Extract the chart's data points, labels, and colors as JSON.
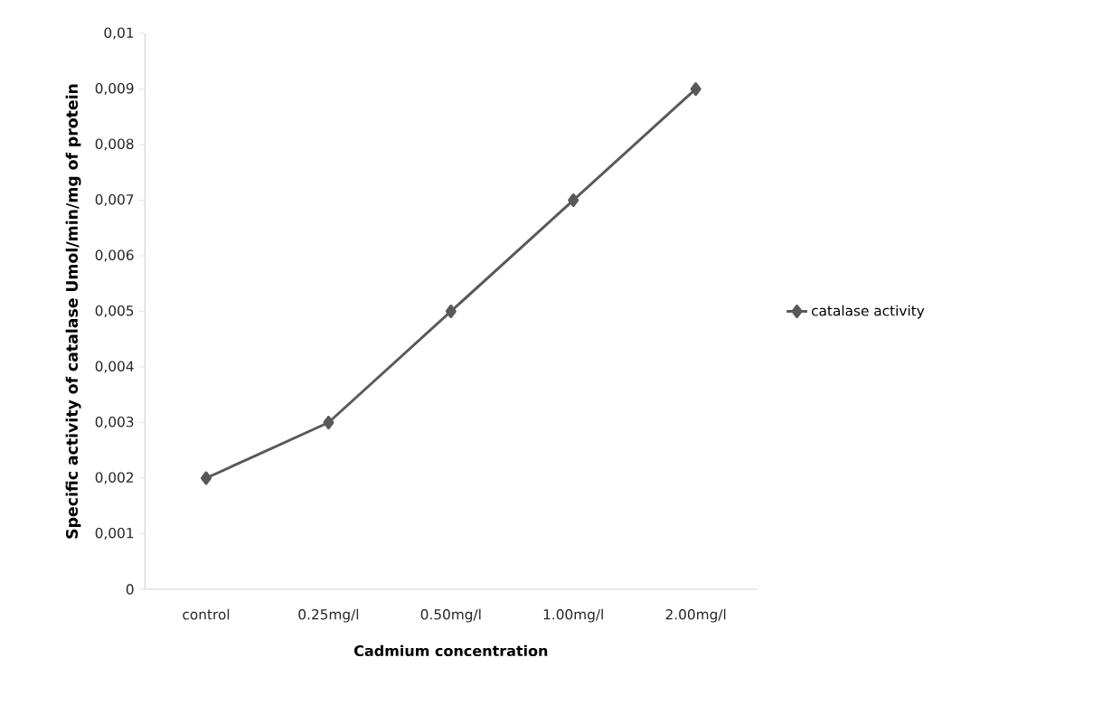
{
  "chart_data": {
    "type": "line",
    "xlabel": "Cadmium concentration",
    "ylabel": "Specific activity of catalase Umol/min/mg of protein",
    "categories": [
      "control",
      "0.25mg/l",
      "0.50mg/l",
      "1.00mg/l",
      "2.00mg/l"
    ],
    "series": [
      {
        "name": "catalase activity",
        "color": "#595959",
        "values": [
          0.002,
          0.003,
          0.005,
          0.007,
          0.009
        ]
      }
    ],
    "ylim": [
      0,
      0.01
    ],
    "yticks": [
      0,
      {
        "value": 0.001,
        "label": "0,001"
      },
      {
        "value": 0.002,
        "label": "0,002"
      },
      {
        "value": 0.003,
        "label": "0,003"
      },
      {
        "value": 0.004,
        "label": "0,004"
      },
      {
        "value": 0.005,
        "label": "0,005"
      },
      {
        "value": 0.006,
        "label": "0,006"
      },
      {
        "value": 0.007,
        "label": "0,007"
      },
      {
        "value": 0.008,
        "label": "0,008"
      },
      {
        "value": 0.009,
        "label": "0,009"
      },
      {
        "value": 0.01,
        "label": "0,01"
      }
    ],
    "marker": "diamond",
    "line_style": "solid",
    "legend": "right",
    "grid": false
  }
}
